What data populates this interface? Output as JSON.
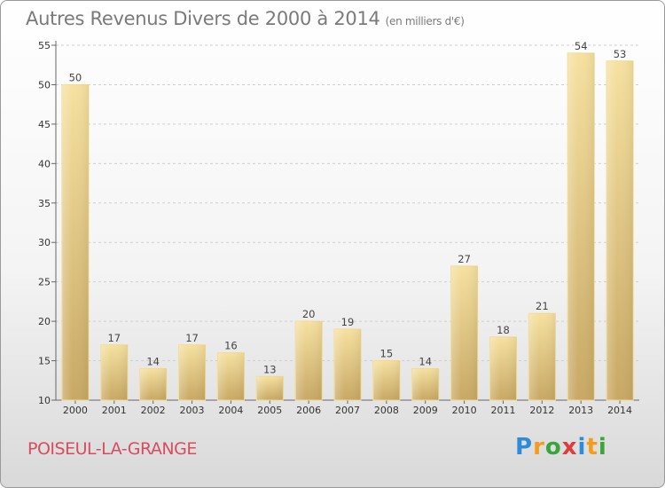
{
  "title": "Autres Revenus Divers de 2000 à 2014",
  "unit_label": "(en milliers d'€)",
  "commune": "POISEUL-LA-GRANGE",
  "logo_text": "Proxiti",
  "colors": {
    "title": "#7a7a7a",
    "commune": "#d84d5d",
    "bar_light": "#f6e1a0",
    "bar_dark": "#c8a864"
  },
  "chart_data": {
    "type": "bar",
    "title": "Autres Revenus Divers de 2000 à 2014",
    "subtitle": "(en milliers d'€)",
    "xlabel": "",
    "ylabel": "",
    "categories": [
      "2000",
      "2001",
      "2002",
      "2003",
      "2004",
      "2005",
      "2006",
      "2007",
      "2008",
      "2009",
      "2010",
      "2011",
      "2012",
      "2013",
      "2014"
    ],
    "values": [
      50,
      17,
      14,
      17,
      16,
      13,
      20,
      19,
      15,
      14,
      27,
      18,
      21,
      54,
      53
    ],
    "ylim": [
      10,
      55
    ],
    "yticks": [
      10,
      15,
      20,
      25,
      30,
      35,
      40,
      45,
      50,
      55
    ],
    "grid": true,
    "legend": "none"
  }
}
